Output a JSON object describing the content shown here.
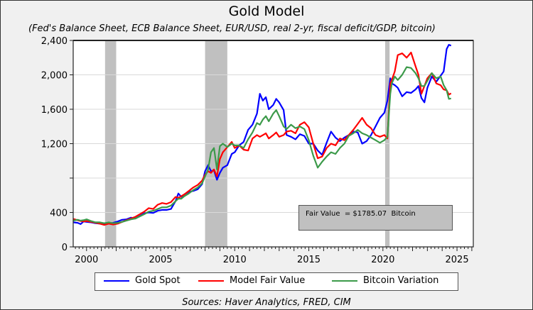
{
  "chart_data": {
    "type": "line",
    "title": "Gold Model",
    "subtitle": "(Fed's Balance Sheet, ECB Balance Sheet, EUR/USD, real 2-yr, fiscal deficit/GDP, bitcoin)",
    "xlabel": "",
    "ylabel": "",
    "xlim": [
      1999.1,
      2026.1
    ],
    "ylim": [
      0,
      2400
    ],
    "x_ticks": [
      2000,
      2005,
      2010,
      2015,
      2020,
      2025
    ],
    "x_tick_labels": [
      "2000",
      "2005",
      "2010",
      "2015",
      "2020",
      "2025"
    ],
    "y_ticks": [
      0,
      400,
      800,
      1200,
      1600,
      2000,
      2400
    ],
    "y_tick_labels": [
      "0",
      "400",
      "",
      "1,200",
      "1,600",
      "2,000",
      "2,400"
    ],
    "grid": true,
    "legend_position": "bottom",
    "recession_shading": [
      [
        2001.25,
        2002.0
      ],
      [
        2008.0,
        2009.5
      ],
      [
        2020.15,
        2020.45
      ]
    ],
    "annotation": "Fair Value  = $1785.07  Bitcoin",
    "sources": "Sources:  Haver Analytics, FRED, CIM",
    "series": [
      {
        "name": "Gold Spot",
        "color": "#0000ff",
        "x": [
          1999.1,
          1999.4,
          1999.6,
          1999.8,
          2000.0,
          2000.3,
          2000.6,
          2000.9,
          2001.2,
          2001.5,
          2001.8,
          2002.1,
          2002.4,
          2002.7,
          2003.0,
          2003.3,
          2003.6,
          2003.9,
          2004.2,
          2004.5,
          2004.8,
          2005.1,
          2005.4,
          2005.7,
          2006.0,
          2006.2,
          2006.4,
          2006.6,
          2006.9,
          2007.2,
          2007.5,
          2007.8,
          2008.0,
          2008.2,
          2008.4,
          2008.6,
          2008.8,
          2009.0,
          2009.2,
          2009.5,
          2009.8,
          2010.0,
          2010.3,
          2010.6,
          2010.9,
          2011.2,
          2011.5,
          2011.7,
          2011.9,
          2012.1,
          2012.3,
          2012.6,
          2012.8,
          2013.0,
          2013.3,
          2013.5,
          2013.8,
          2014.1,
          2014.4,
          2014.7,
          2015.0,
          2015.3,
          2015.6,
          2015.9,
          2016.2,
          2016.5,
          2016.8,
          2017.1,
          2017.4,
          2017.7,
          2018.0,
          2018.3,
          2018.6,
          2018.9,
          2019.2,
          2019.5,
          2019.8,
          2020.1,
          2020.3,
          2020.5,
          2020.6,
          2020.8,
          2021.0,
          2021.3,
          2021.6,
          2021.9,
          2022.2,
          2022.4,
          2022.6,
          2022.8,
          2023.0,
          2023.3,
          2023.6,
          2023.9,
          2024.1,
          2024.3,
          2024.45,
          2024.6
        ],
        "values": [
          285,
          280,
          265,
          295,
          290,
          285,
          275,
          270,
          265,
          270,
          280,
          295,
          315,
          320,
          340,
          330,
          360,
          390,
          400,
          395,
          420,
          430,
          430,
          440,
          530,
          620,
          580,
          610,
          640,
          650,
          670,
          730,
          880,
          950,
          880,
          890,
          780,
          860,
          920,
          950,
          1080,
          1100,
          1180,
          1220,
          1360,
          1420,
          1550,
          1780,
          1700,
          1740,
          1600,
          1650,
          1720,
          1680,
          1590,
          1300,
          1280,
          1250,
          1310,
          1290,
          1200,
          1200,
          1120,
          1070,
          1210,
          1340,
          1270,
          1230,
          1270,
          1300,
          1340,
          1330,
          1200,
          1230,
          1300,
          1400,
          1500,
          1560,
          1700,
          1960,
          1900,
          1880,
          1850,
          1750,
          1800,
          1790,
          1830,
          1870,
          1730,
          1680,
          1850,
          1980,
          1920,
          1990,
          2040,
          2300,
          2350,
          2340
        ]
      },
      {
        "name": "Model Fair Value",
        "color": "#ff0000",
        "x": [
          1999.1,
          1999.4,
          1999.6,
          1999.8,
          2000.0,
          2000.3,
          2000.6,
          2000.9,
          2001.2,
          2001.5,
          2001.8,
          2002.1,
          2002.4,
          2002.7,
          2003.0,
          2003.3,
          2003.6,
          2003.9,
          2004.2,
          2004.5,
          2004.8,
          2005.1,
          2005.4,
          2005.7,
          2006.0,
          2006.2,
          2006.4,
          2006.6,
          2006.9,
          2007.2,
          2007.5,
          2007.8,
          2008.0,
          2008.2,
          2008.4,
          2008.6,
          2008.8,
          2009.0,
          2009.2,
          2009.5,
          2009.8,
          2010.0,
          2010.3,
          2010.6,
          2010.9,
          2011.2,
          2011.5,
          2011.7,
          2011.9,
          2012.1,
          2012.3,
          2012.6,
          2012.8,
          2013.0,
          2013.3,
          2013.5,
          2013.8,
          2014.1,
          2014.4,
          2014.7,
          2015.0,
          2015.3,
          2015.6,
          2015.9,
          2016.2,
          2016.5,
          2016.8,
          2017.1,
          2017.4,
          2017.7,
          2018.0,
          2018.3,
          2018.6,
          2018.9,
          2019.2,
          2019.5,
          2019.8,
          2020.1,
          2020.3,
          2020.5,
          2020.6,
          2020.8,
          2021.0,
          2021.3,
          2021.6,
          2021.9,
          2022.2,
          2022.4,
          2022.6,
          2022.8,
          2023.0,
          2023.3,
          2023.6,
          2023.9,
          2024.1,
          2024.3,
          2024.45,
          2024.6
        ],
        "values": [
          325,
          310,
          300,
          295,
          300,
          290,
          280,
          270,
          255,
          270,
          260,
          270,
          290,
          310,
          330,
          350,
          380,
          410,
          450,
          440,
          490,
          510,
          500,
          520,
          580,
          570,
          590,
          610,
          650,
          690,
          720,
          770,
          840,
          880,
          860,
          900,
          820,
          1020,
          1100,
          1160,
          1220,
          1150,
          1180,
          1130,
          1120,
          1260,
          1300,
          1280,
          1300,
          1320,
          1260,
          1300,
          1330,
          1280,
          1300,
          1340,
          1350,
          1320,
          1420,
          1450,
          1390,
          1200,
          1030,
          1050,
          1150,
          1200,
          1180,
          1260,
          1240,
          1300,
          1360,
          1430,
          1500,
          1420,
          1380,
          1300,
          1280,
          1300,
          1260,
          1900,
          1940,
          2040,
          2230,
          2250,
          2200,
          2260,
          2100,
          2000,
          1780,
          1870,
          1960,
          2020,
          1900,
          1880,
          1830,
          1820,
          1770,
          1785
        ]
      },
      {
        "name": "Bitcoin Variation",
        "color": "#3c9a4a",
        "x": [
          1999.1,
          1999.4,
          1999.6,
          1999.8,
          2000.0,
          2000.3,
          2000.6,
          2000.9,
          2001.2,
          2001.5,
          2001.8,
          2002.1,
          2002.4,
          2002.7,
          2003.0,
          2003.3,
          2003.6,
          2003.9,
          2004.2,
          2004.5,
          2004.8,
          2005.1,
          2005.4,
          2005.7,
          2006.0,
          2006.2,
          2006.4,
          2006.6,
          2006.9,
          2007.2,
          2007.5,
          2007.8,
          2008.0,
          2008.2,
          2008.4,
          2008.6,
          2008.8,
          2009.0,
          2009.2,
          2009.5,
          2009.8,
          2010.0,
          2010.3,
          2010.6,
          2010.9,
          2011.2,
          2011.5,
          2011.7,
          2011.9,
          2012.1,
          2012.3,
          2012.6,
          2012.8,
          2013.0,
          2013.3,
          2013.5,
          2013.8,
          2014.1,
          2014.4,
          2014.7,
          2015.0,
          2015.3,
          2015.6,
          2015.9,
          2016.2,
          2016.5,
          2016.8,
          2017.1,
          2017.4,
          2017.7,
          2018.0,
          2018.3,
          2018.6,
          2018.9,
          2019.2,
          2019.5,
          2019.8,
          2020.1,
          2020.3,
          2020.5,
          2020.6,
          2020.8,
          2021.0,
          2021.3,
          2021.6,
          2021.9,
          2022.2,
          2022.4,
          2022.6,
          2022.8,
          2023.0,
          2023.3,
          2023.6,
          2023.9,
          2024.1,
          2024.3,
          2024.45,
          2024.6
        ],
        "values": [
          305,
          315,
          305,
          310,
          320,
          300,
          285,
          285,
          275,
          285,
          275,
          280,
          290,
          305,
          320,
          330,
          355,
          380,
          410,
          420,
          440,
          460,
          460,
          480,
          530,
          560,
          560,
          590,
          620,
          660,
          690,
          740,
          820,
          900,
          1100,
          1150,
          900,
          1170,
          1200,
          1160,
          1200,
          1180,
          1180,
          1150,
          1250,
          1330,
          1440,
          1420,
          1480,
          1520,
          1460,
          1550,
          1590,
          1520,
          1400,
          1370,
          1420,
          1380,
          1400,
          1370,
          1240,
          1060,
          920,
          990,
          1050,
          1100,
          1080,
          1150,
          1200,
          1290,
          1320,
          1360,
          1320,
          1300,
          1270,
          1240,
          1210,
          1240,
          1280,
          1780,
          1900,
          1980,
          1940,
          2000,
          2090,
          2080,
          2020,
          1960,
          1870,
          1870,
          1930,
          2020,
          1960,
          1980,
          1880,
          1820,
          1720,
          1725
        ]
      }
    ]
  },
  "legend": {
    "items": [
      {
        "label": "Gold Spot",
        "color": "#0000ff"
      },
      {
        "label": "Model Fair Value",
        "color": "#ff0000"
      },
      {
        "label": "Bitcoin Variation",
        "color": "#3c9a4a"
      }
    ]
  }
}
